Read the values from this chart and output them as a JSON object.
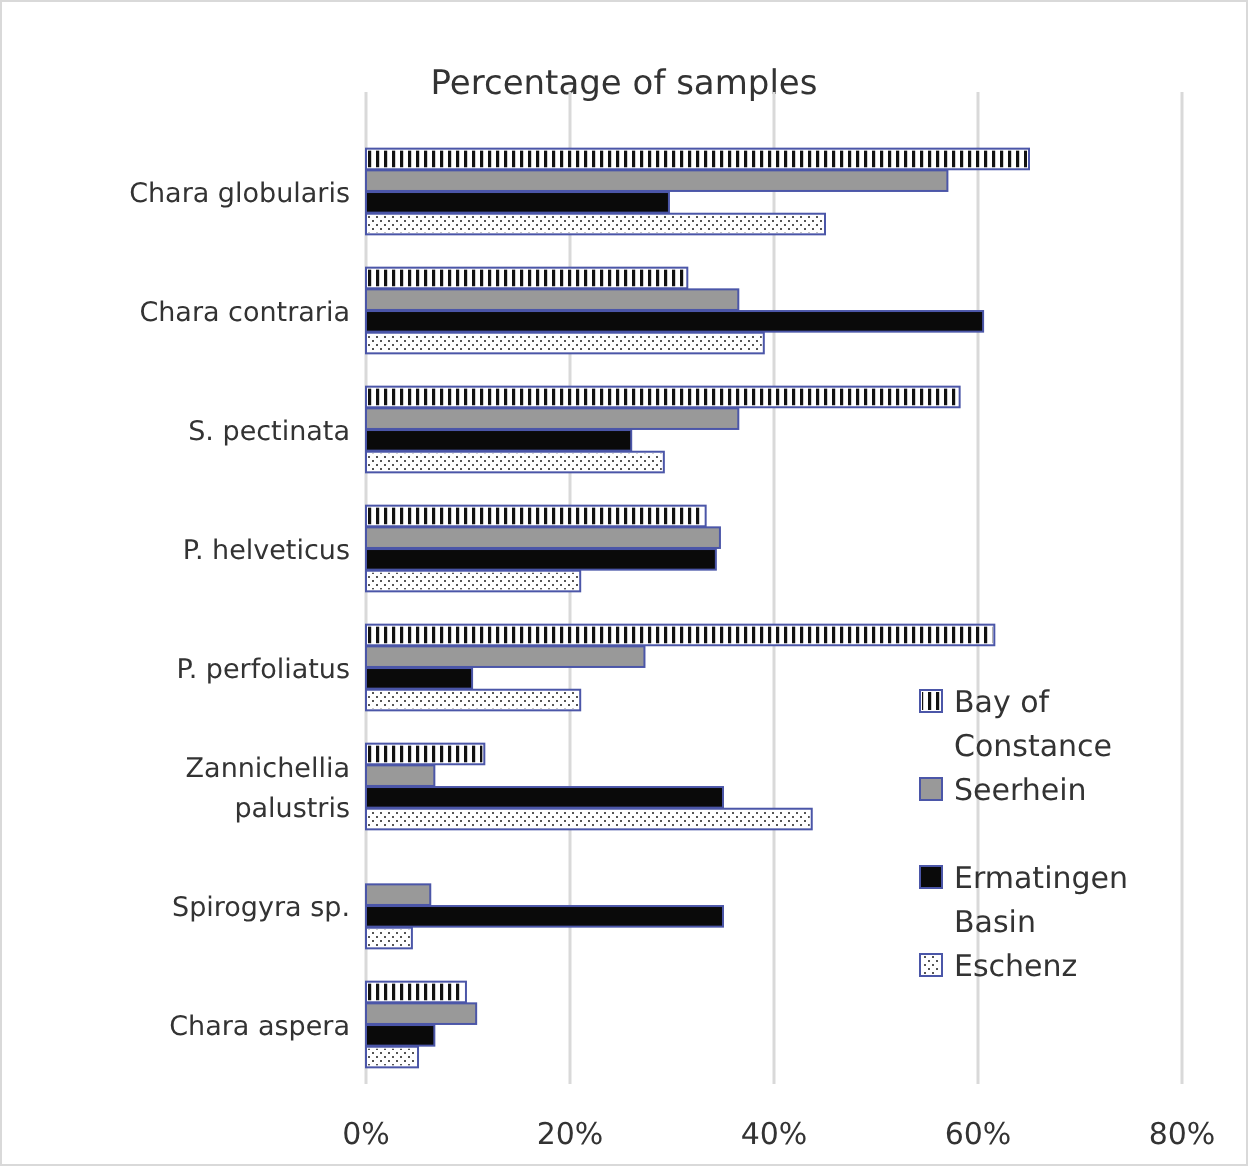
{
  "chart_data": {
    "type": "bar",
    "orientation": "horizontal",
    "title": "Percentage of samples",
    "categories": [
      "Chara globularis",
      "Chara contraria",
      "S. pectinata",
      "P. helveticus",
      "P. perfoliatus",
      "Zannichellia palustris",
      "Spirogyra sp.",
      "Chara aspera"
    ],
    "series": [
      {
        "name": "Bay of Constance",
        "color": "#ffffff",
        "values": [
          65,
          31.5,
          58.2,
          33.3,
          61.6,
          11.6,
          null,
          9.8
        ]
      },
      {
        "name": "Seerhein",
        "color": "#999999",
        "values": [
          57,
          36.5,
          36.5,
          34.7,
          27.3,
          6.7,
          6.3,
          10.8
        ]
      },
      {
        "name": "Ermatingen Basin",
        "color": "#0a0a0a",
        "values": [
          29.7,
          60.5,
          26,
          34.3,
          10.4,
          35,
          35,
          6.7
        ]
      },
      {
        "name": "Eschenz",
        "color": "#ffffff",
        "values": [
          45,
          39,
          29.2,
          21,
          21,
          43.7,
          4.5,
          5.1
        ]
      }
    ],
    "xlim": [
      0,
      80
    ],
    "xticks": [
      {
        "value": 0,
        "label": "0%"
      },
      {
        "value": 20,
        "label": "20%"
      },
      {
        "value": 40,
        "label": "40%"
      },
      {
        "value": 60,
        "label": "60%"
      },
      {
        "value": 80,
        "label": "80%"
      }
    ],
    "grid": "x",
    "legend": "bottom right"
  }
}
